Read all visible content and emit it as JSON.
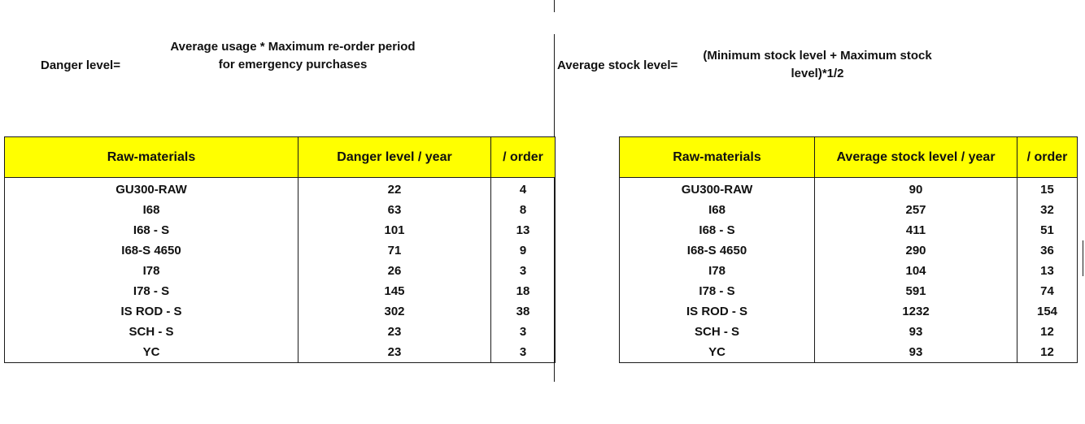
{
  "left": {
    "formula_label": "Danger level=",
    "formula_line1": "Average usage * Maximum re-order period",
    "formula_line2": "for emergency purchases",
    "headers": [
      "Raw-materials",
      "Danger level / year",
      "/ order"
    ],
    "rows": [
      [
        "GU300-RAW",
        "22",
        "4"
      ],
      [
        "I68",
        "63",
        "8"
      ],
      [
        "I68 - S",
        "101",
        "13"
      ],
      [
        "I68-S 4650",
        "71",
        "9"
      ],
      [
        "I78",
        "26",
        "3"
      ],
      [
        "I78 - S",
        "145",
        "18"
      ],
      [
        "IS ROD - S",
        "302",
        "38"
      ],
      [
        "SCH - S",
        "23",
        "3"
      ],
      [
        "YC",
        "23",
        "3"
      ]
    ]
  },
  "right": {
    "formula_label": "Average stock level=",
    "formula_line1": "(Minimum stock level + Maximum stock",
    "formula_line2": "level)*1/2",
    "headers": [
      "Raw-materials",
      "Average stock level / year",
      "/ order"
    ],
    "rows": [
      [
        "GU300-RAW",
        "90",
        "15"
      ],
      [
        "I68",
        "257",
        "32"
      ],
      [
        "I68 - S",
        "411",
        "51"
      ],
      [
        "I68-S 4650",
        "290",
        "36"
      ],
      [
        "I78",
        "104",
        "13"
      ],
      [
        "I78 - S",
        "591",
        "74"
      ],
      [
        "IS ROD - S",
        "1232",
        "154"
      ],
      [
        "SCH - S",
        "93",
        "12"
      ],
      [
        "YC",
        "93",
        "12"
      ]
    ]
  },
  "colors": {
    "header_fill": "#ffff00",
    "border": "#1a1a1a"
  }
}
